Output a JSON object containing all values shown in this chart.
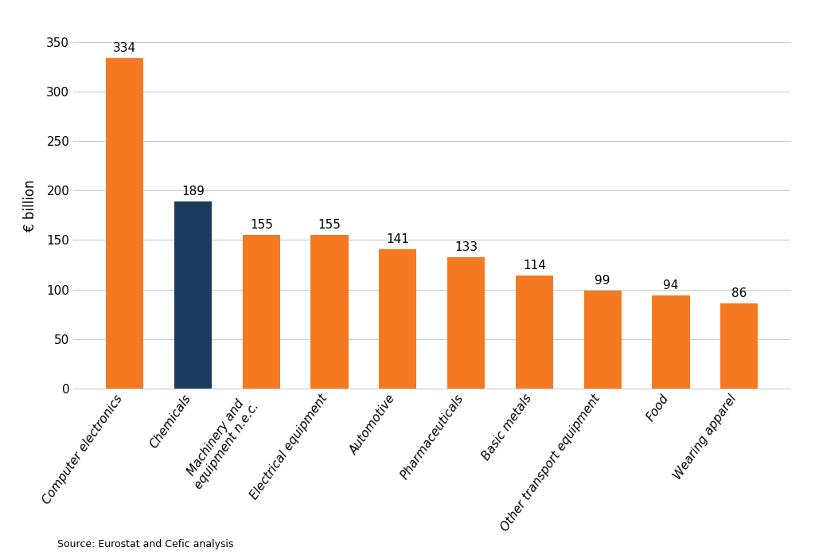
{
  "categories": [
    "Computer electronics",
    "Chemicals",
    "Machinery and\nequipment n.e.c.",
    "Electrical equipment",
    "Automotive",
    "Pharmaceuticals",
    "Basic metals",
    "Other transport equipment",
    "Food",
    "Wearing apparel"
  ],
  "values": [
    334,
    189,
    155,
    155,
    141,
    133,
    114,
    99,
    94,
    86
  ],
  "bar_colors": [
    "#F47920",
    "#1B3A5C",
    "#F47920",
    "#F47920",
    "#F47920",
    "#F47920",
    "#F47920",
    "#F47920",
    "#F47920",
    "#F47920"
  ],
  "ylabel": "€ billion",
  "ylim": [
    0,
    370
  ],
  "yticks": [
    0,
    50,
    100,
    150,
    200,
    250,
    300,
    350
  ],
  "source_text": "Source: Eurostat and Cefic analysis",
  "background_color": "#FFFFFF",
  "tick_fontsize": 11,
  "ylabel_fontsize": 12,
  "source_fontsize": 9,
  "bar_label_fontsize": 11,
  "label_rotation": 55,
  "bar_width": 0.55,
  "grid_color": "#CCCCCC",
  "grid_linewidth": 0.8
}
